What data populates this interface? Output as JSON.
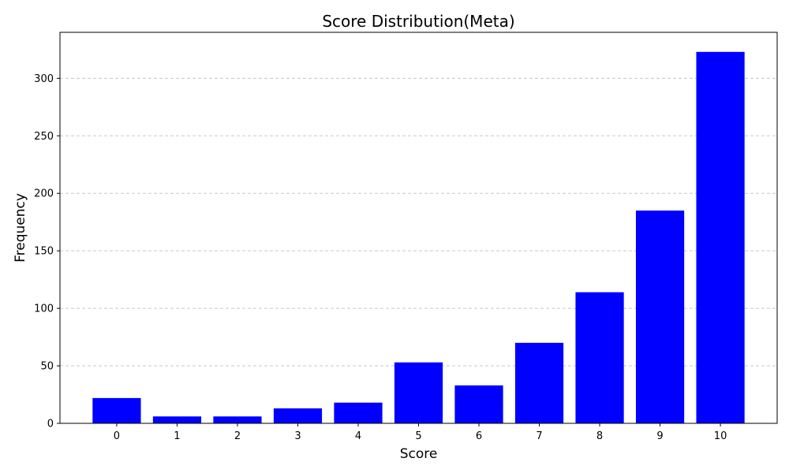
{
  "chart_data": {
    "type": "bar",
    "title": "Score Distribution(Meta)",
    "xlabel": "Score",
    "ylabel": "Frequency",
    "categories": [
      "0",
      "1",
      "2",
      "3",
      "4",
      "5",
      "6",
      "7",
      "8",
      "9",
      "10"
    ],
    "values": [
      22,
      6,
      6,
      13,
      18,
      53,
      33,
      70,
      114,
      185,
      323
    ],
    "ylim": [
      0,
      340
    ],
    "yticks": [
      0,
      50,
      100,
      150,
      200,
      250,
      300
    ],
    "grid": "y-dashed",
    "bar_color": "#0000ff",
    "grid_color": "#c8c8c8"
  }
}
